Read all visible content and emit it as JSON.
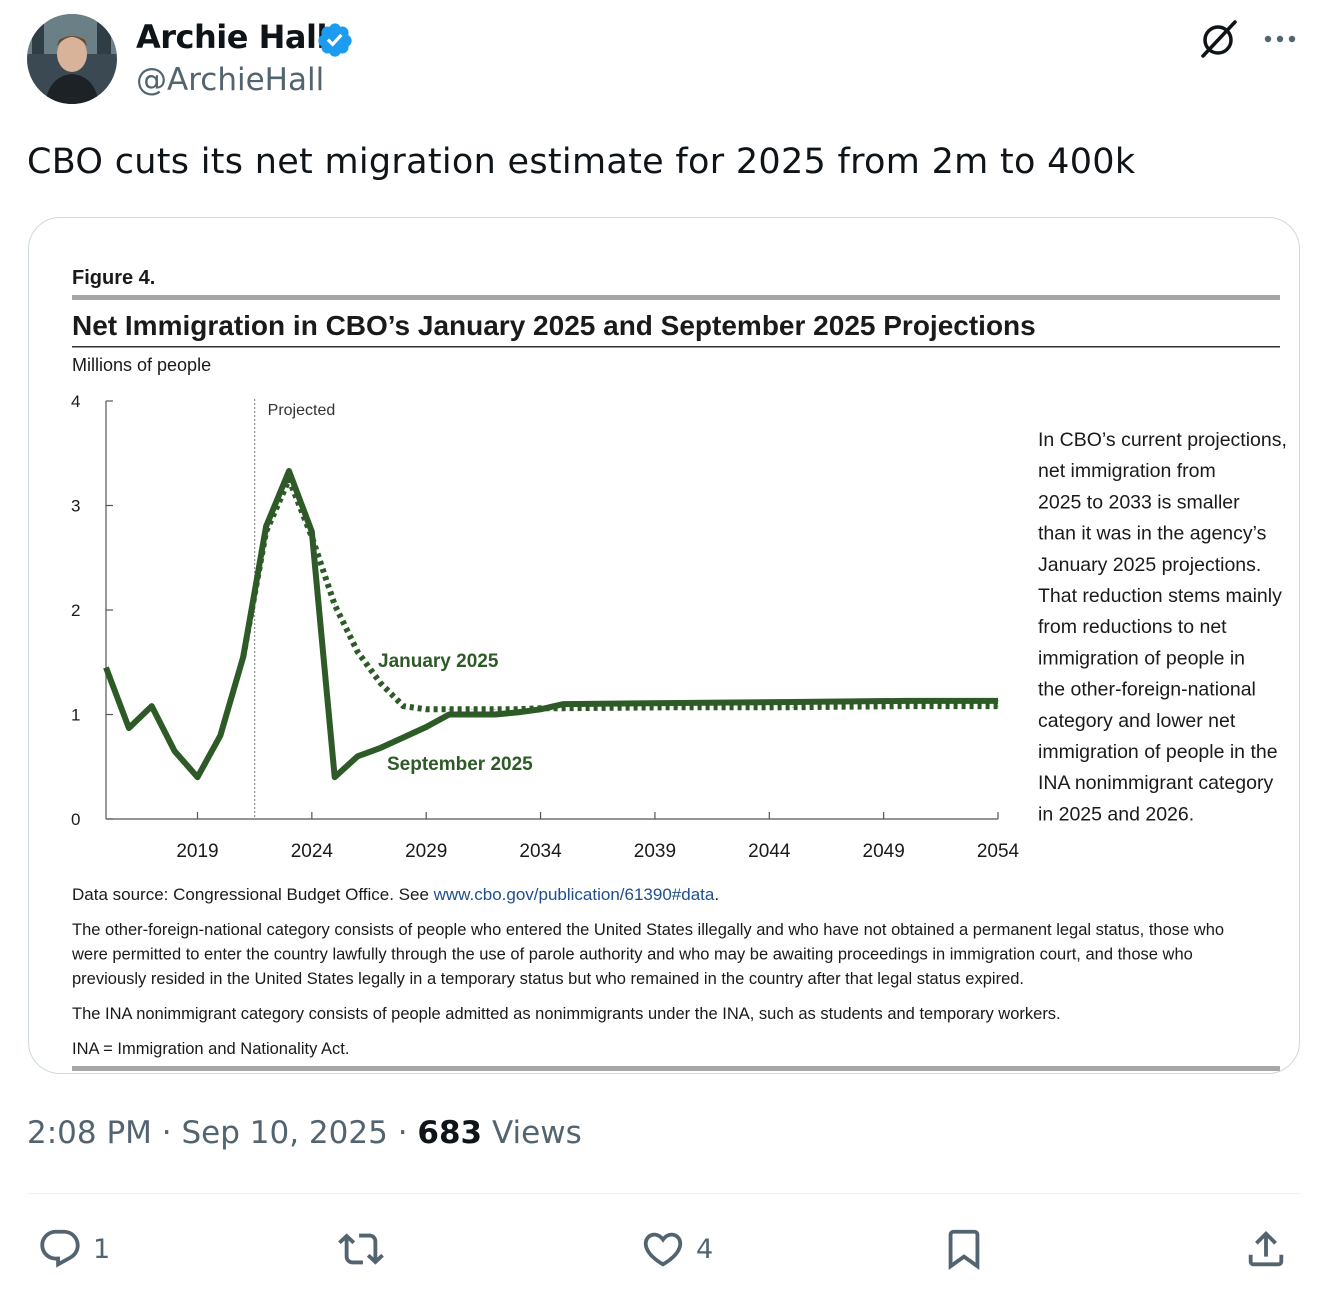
{
  "author": {
    "name": "Archie Hall",
    "handle": "@ArchieHall",
    "verified": true
  },
  "tweet": {
    "text": "CBO cuts its net migration estimate for 2025 from 2m to 400k",
    "time": "2:08 PM",
    "date": "Sep 10, 2025",
    "separator": "·",
    "views_count": "683",
    "views_label": "Views"
  },
  "actions": {
    "reply_count": "1",
    "like_count": "4"
  },
  "colors": {
    "series": "#2d5a27",
    "accent_blue": "#1d9bf0",
    "muted": "#536471"
  },
  "figure": {
    "label": "Figure 4.",
    "title": "Net Immigration in CBO’s January 2025 and September 2025 Projections",
    "units": "Millions of people",
    "projected_label": "Projected",
    "annotation_lines": [
      "In CBO’s current projections,",
      "net immigration from",
      "2025 to 2033 is smaller",
      "than it was in the agency’s",
      "January 2025 projections.",
      "That reduction stems mainly",
      "from reductions to net",
      "immigration of people in",
      "the other-foreign-national",
      "category and lower net",
      "immigration of people in the",
      "INA nonimmigrant category",
      "in 2025 and 2026."
    ],
    "source_prefix": "Data source: Congressional Budget Office. See ",
    "source_link": "www.cbo.gov/publication/61390#data",
    "source_suffix": ".",
    "note1_lines": [
      "The other-foreign-national category consists of people who entered the United States illegally and who have not obtained a permanent legal status, those who",
      "were permitted to enter the country lawfully through the use of parole authority and who may be awaiting proceedings in immigration court, and those who",
      "previously resided in the United States legally in a temporary status but who remained in the country after that legal status expired."
    ],
    "note2": "The INA nonimmigrant category consists of people admitted as nonimmigrants under the INA, such as students and temporary workers.",
    "note3": "INA = Immigration and Nationality Act."
  },
  "chart_data": {
    "type": "line",
    "ylabel": "Millions of people",
    "xlim": [
      2015,
      2054
    ],
    "ylim": [
      0,
      4
    ],
    "x_ticks": [
      2019,
      2024,
      2029,
      2034,
      2039,
      2044,
      2049,
      2054
    ],
    "y_ticks": [
      0,
      1,
      2,
      3,
      4
    ],
    "projected_from": 2021.5,
    "grid": false,
    "legend": "inline labels",
    "series": [
      {
        "name": "January 2025",
        "style": "dotted",
        "x": [
          2021,
          2022,
          2023,
          2024,
          2025,
          2026,
          2027,
          2028,
          2029,
          2030,
          2031,
          2032,
          2033,
          2034,
          2035,
          2040,
          2045,
          2050,
          2054
        ],
        "y": [
          1.55,
          2.75,
          3.25,
          2.7,
          2.05,
          1.6,
          1.3,
          1.08,
          1.05,
          1.05,
          1.05,
          1.05,
          1.05,
          1.06,
          1.06,
          1.07,
          1.07,
          1.08,
          1.08
        ]
      },
      {
        "name": "September 2025",
        "style": "solid",
        "x": [
          2015,
          2016,
          2017,
          2018,
          2019,
          2020,
          2021,
          2022,
          2023,
          2024,
          2025,
          2026,
          2027,
          2028,
          2029,
          2030,
          2031,
          2032,
          2033,
          2034,
          2035,
          2040,
          2045,
          2050,
          2054
        ],
        "y": [
          1.45,
          0.87,
          1.08,
          0.65,
          0.4,
          0.8,
          1.55,
          2.8,
          3.33,
          2.75,
          0.4,
          0.6,
          0.68,
          0.78,
          0.88,
          1.0,
          1.0,
          1.0,
          1.02,
          1.05,
          1.1,
          1.11,
          1.12,
          1.13,
          1.13
        ]
      }
    ]
  }
}
